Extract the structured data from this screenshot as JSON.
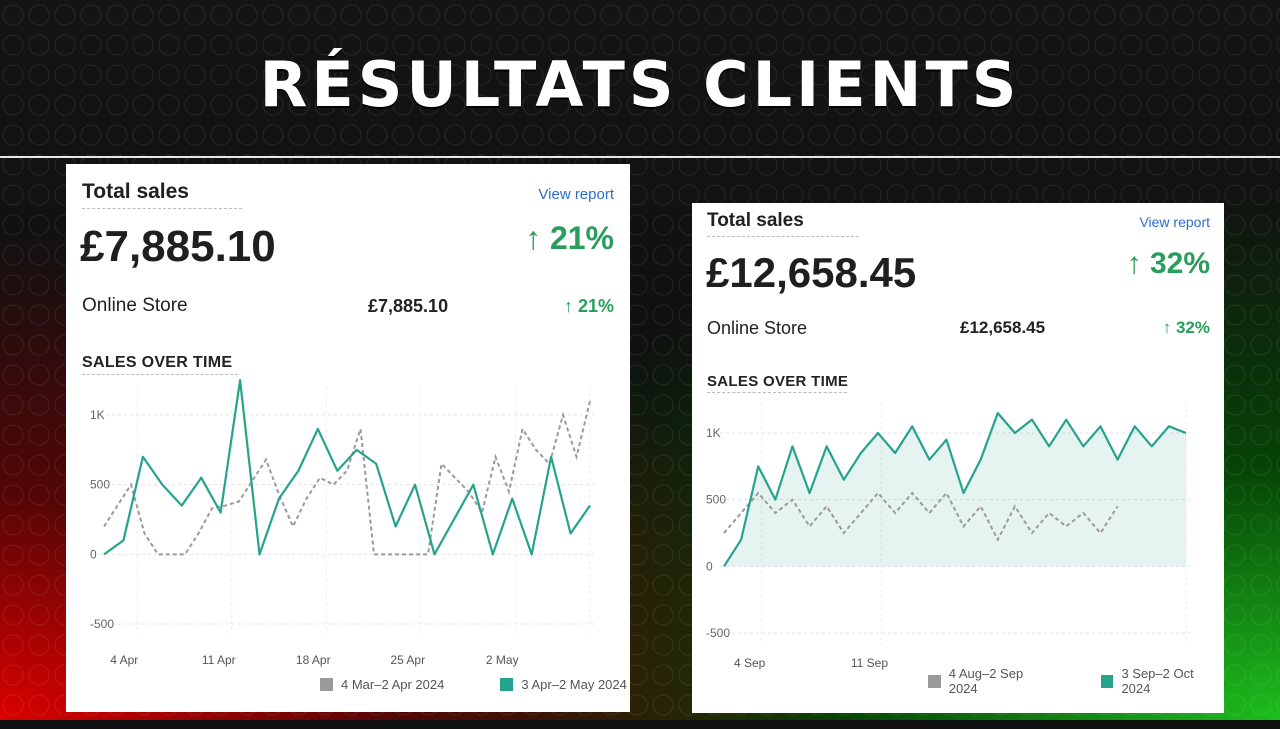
{
  "title": "RÉSULTATS CLIENTS",
  "colors": {
    "positive": "#2a9d5c",
    "current_series": "#26a38c",
    "previous_series": "#9a9a9a",
    "link": "#2c6ecb"
  },
  "cards": [
    {
      "card_title": "Total sales",
      "view_report": "View report",
      "total": "£7,885.10",
      "change": "↑ 21%",
      "channel": {
        "label": "Online Store",
        "value": "£7,885.10",
        "change": "↑ 21%"
      },
      "section_title": "SALES OVER TIME",
      "legend": {
        "previous": "4 Mar–2 Apr 2024",
        "current": "3 Apr–2 May 2024"
      }
    },
    {
      "card_title": "Total sales",
      "view_report": "View report",
      "total": "£12,658.45",
      "change": "↑ 32%",
      "channel": {
        "label": "Online Store",
        "value": "£12,658.45",
        "change": "↑ 32%"
      },
      "section_title": "SALES OVER TIME",
      "legend": {
        "previous": "4 Aug–2 Sep 2024",
        "current": "3 Sep–2 Oct 2024"
      }
    }
  ],
  "chart_data": [
    {
      "type": "line",
      "title": "SALES OVER TIME",
      "xlabel": "",
      "ylabel": "",
      "ylim": [
        -500,
        1000
      ],
      "yticks": [
        "1K",
        "500",
        "0",
        "-500"
      ],
      "ytick_values": [
        1000,
        500,
        0,
        -500
      ],
      "xticks": [
        "4 Apr",
        "11 Apr",
        "18 Apr",
        "25 Apr",
        "2 May"
      ],
      "xtick_index": [
        1.5,
        8.5,
        15.5,
        22.5,
        29.5
      ],
      "grid": true,
      "legend_position": "bottom-right",
      "fill_current": false,
      "series": [
        {
          "name": "4 Mar–2 Apr 2024",
          "style": "dashed",
          "values": [
            200,
            350,
            500,
            150,
            0,
            0,
            0,
            150,
            330,
            350,
            380,
            530,
            680,
            420,
            200,
            400,
            550,
            500,
            600,
            900,
            0,
            0,
            0,
            0,
            0,
            650,
            550,
            450,
            300,
            700,
            450,
            900,
            750,
            650,
            1000,
            700,
            1100
          ]
        },
        {
          "name": "3 Apr–2 May 2024",
          "style": "solid",
          "values": [
            0,
            100,
            700,
            500,
            350,
            550,
            300,
            1250,
            0,
            400,
            600,
            900,
            600,
            750,
            650,
            200,
            500,
            0,
            250,
            500,
            0,
            400,
            0,
            700,
            150,
            350
          ]
        }
      ]
    },
    {
      "type": "area",
      "title": "SALES OVER TIME",
      "xlabel": "",
      "ylabel": "",
      "ylim": [
        -500,
        1000
      ],
      "yticks": [
        "1K",
        "500",
        "0",
        "-500"
      ],
      "ytick_values": [
        1000,
        500,
        0,
        -500
      ],
      "xticks": [
        "4 Sep",
        "11 Sep"
      ],
      "xtick_index": [
        1.5,
        8.5
      ],
      "grid": true,
      "legend_position": "bottom-right",
      "fill_current": true,
      "series": [
        {
          "name": "4 Aug–2 Sep 2024",
          "style": "dashed",
          "values": [
            250,
            400,
            550,
            400,
            500,
            300,
            450,
            250,
            400,
            550,
            400,
            550,
            400,
            550,
            300,
            450,
            200,
            450,
            250,
            400,
            300,
            400,
            250,
            450
          ]
        },
        {
          "name": "3 Sep–2 Oct 2024",
          "style": "solid",
          "values": [
            0,
            200,
            750,
            500,
            900,
            550,
            900,
            650,
            850,
            1000,
            850,
            1050,
            800,
            950,
            550,
            800,
            1150,
            1000,
            1100,
            900,
            1100,
            900,
            1050,
            800,
            1050,
            900,
            1050,
            1000
          ]
        }
      ]
    }
  ]
}
